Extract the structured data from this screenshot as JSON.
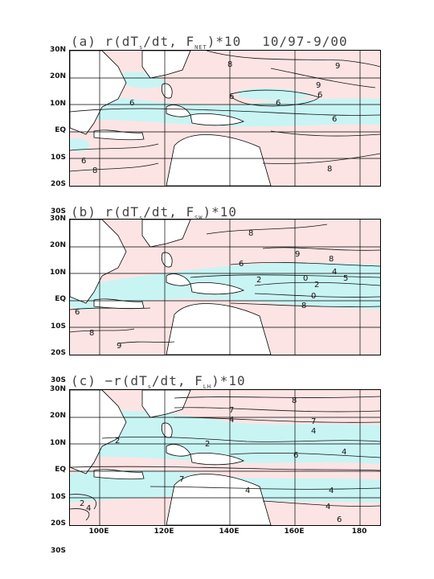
{
  "panels": [
    {
      "id": "a",
      "title_prefix": "(a) r(dT",
      "title_sub1": "s",
      "title_mid": "/dt, F",
      "title_sub2": "NET",
      "title_suffix": ")*10",
      "date_range": "10/97-9/00",
      "contour_labels": [
        "8",
        "9",
        "9",
        "6",
        "6",
        "6",
        "6",
        "6",
        "8",
        "8",
        "6"
      ]
    },
    {
      "id": "b",
      "title_prefix": "(b) r(dT",
      "title_sub1": "s",
      "title_mid": "/dt, F",
      "title_sub2": "SW",
      "title_suffix": ")*10",
      "contour_labels": [
        "8",
        "9",
        "8",
        "6",
        "2",
        "2",
        "0",
        "4",
        "5",
        "0",
        "8",
        "8",
        "9",
        "6"
      ]
    },
    {
      "id": "c",
      "title_prefix": "(c) −r(dT",
      "title_sub1": "s",
      "title_mid": "/dt, F",
      "title_sub2": "LH",
      "title_suffix": ")*10",
      "contour_labels": [
        "8",
        "7",
        "7",
        "4",
        "4",
        "2",
        "2",
        "4",
        "6",
        "4",
        "7",
        "4",
        "4",
        "2",
        "6",
        "4"
      ]
    }
  ],
  "lat_labels": [
    "30N",
    "20N",
    "10N",
    "EQ",
    "10S",
    "20S",
    "30S"
  ],
  "lon_labels": [
    "100E",
    "120E",
    "140E",
    "160E",
    "180"
  ],
  "colors": {
    "positive_shading": "#fde4e4",
    "negative_shading": "#c9f4f4",
    "land": "#ffffff",
    "contour": "#111111",
    "grid": "#000000"
  }
}
